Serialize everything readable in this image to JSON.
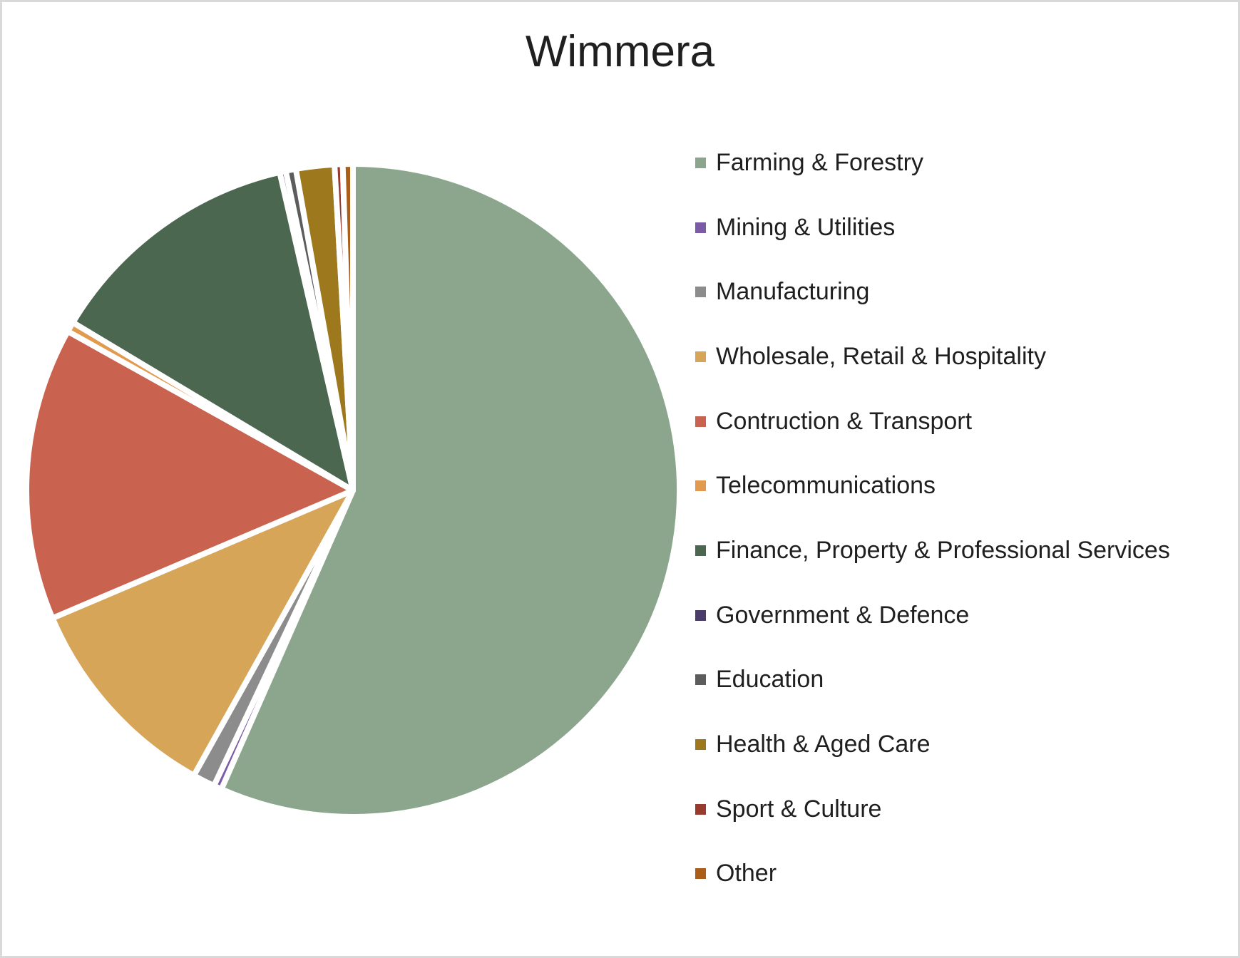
{
  "canvas": {
    "background": "#FFFFFF",
    "border_color": "#D9D9D9"
  },
  "chart_data": {
    "type": "pie",
    "title": "Wimmera",
    "legend_position": "right",
    "start_angle_deg": 0,
    "direction": "clockwise",
    "slice_border_color": "#FFFFFF",
    "categories": [
      "Farming & Forestry",
      "Mining & Utilities",
      "Manufacturing",
      "Wholesale, Retail & Hospitality",
      "Contruction & Transport",
      "Telecommunications",
      "Finance, Property & Professional Services",
      "Government & Defence",
      "Education",
      "Health & Aged Care",
      "Sport & Culture",
      "Other"
    ],
    "values": [
      56.6,
      0.4,
      1.1,
      10.5,
      14.5,
      0.5,
      12.8,
      0.3,
      0.5,
      1.9,
      0.4,
      0.5
    ],
    "unit": "percent (estimated from slice angles; no data labels shown)",
    "colors": [
      "#8BA68D",
      "#7C5BA6",
      "#8C8C8C",
      "#D6A558",
      "#C9624E",
      "#E29A4E",
      "#4C6750",
      "#4B3D6B",
      "#5C5C5C",
      "#9E781D",
      "#983A2E",
      "#AA5E1A"
    ]
  }
}
